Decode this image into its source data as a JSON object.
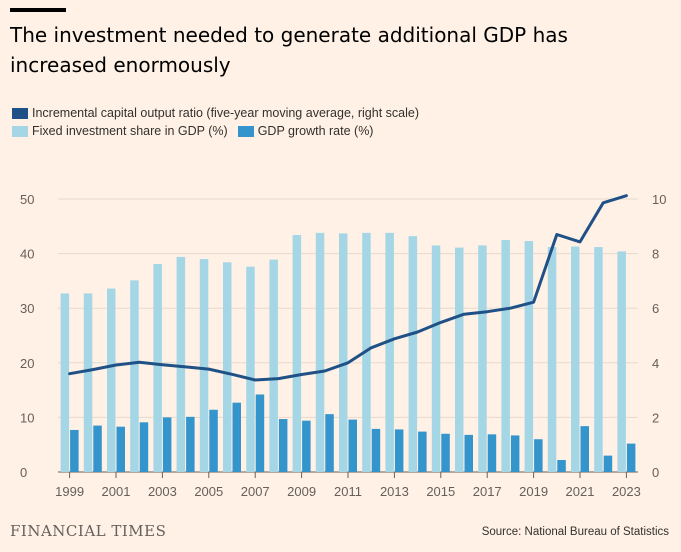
{
  "header": {
    "title": "The investment needed to generate additional GDP has increased enormously"
  },
  "legend": [
    {
      "label": "Incremental capital output ratio (five-year moving average, right scale)",
      "color": "#1F5186"
    },
    {
      "label": "Fixed investment share in GDP (%)",
      "color": "#A4D6E6"
    },
    {
      "label": "GDP growth rate (%)",
      "color": "#3495CD"
    }
  ],
  "footer": {
    "brand": "FINANCIAL TIMES",
    "source": "Source: National Bureau of Statistics"
  },
  "chart_data": {
    "type": "bar",
    "categories": [
      "1999",
      "2000",
      "2001",
      "2002",
      "2003",
      "2004",
      "2005",
      "2006",
      "2007",
      "2008",
      "2009",
      "2010",
      "2011",
      "2012",
      "2013",
      "2014",
      "2015",
      "2016",
      "2017",
      "2018",
      "2019",
      "2020",
      "2021",
      "2022",
      "2023"
    ],
    "x_tick_labels": [
      "1999",
      "2001",
      "2003",
      "2005",
      "2007",
      "2009",
      "2011",
      "2013",
      "2015",
      "2017",
      "2019",
      "2021",
      "2023"
    ],
    "series": [
      {
        "name": "Fixed investment share in GDP (%)",
        "type": "bar",
        "axis": "left",
        "color": "#A4D6E6",
        "values": [
          32.7,
          32.7,
          33.6,
          35.1,
          38.1,
          39.4,
          39.0,
          38.4,
          37.6,
          38.9,
          43.4,
          43.8,
          43.7,
          43.8,
          43.8,
          43.2,
          41.5,
          41.1,
          41.5,
          42.5,
          42.3,
          41.2,
          41.3,
          41.2,
          40.4
        ]
      },
      {
        "name": "GDP growth rate (%)",
        "type": "bar",
        "axis": "left",
        "color": "#3495CD",
        "values": [
          7.7,
          8.5,
          8.3,
          9.1,
          10.0,
          10.1,
          11.4,
          12.7,
          14.2,
          9.7,
          9.4,
          10.6,
          9.6,
          7.9,
          7.8,
          7.4,
          7.0,
          6.8,
          6.9,
          6.7,
          6.0,
          2.2,
          8.4,
          3.0,
          5.2
        ]
      },
      {
        "name": "Incremental capital output ratio (five-year moving average, right scale)",
        "type": "line",
        "axis": "right",
        "color": "#1F5186",
        "values": [
          3.6,
          3.75,
          3.92,
          4.02,
          3.93,
          3.85,
          3.77,
          3.58,
          3.37,
          3.42,
          3.57,
          3.7,
          4.0,
          4.55,
          4.88,
          5.13,
          5.48,
          5.78,
          5.87,
          6.0,
          6.22,
          8.7,
          8.43,
          9.86,
          10.12
        ]
      }
    ],
    "ylim": [
      0,
      50
    ],
    "y_ticks": [
      0,
      10,
      20,
      30,
      40,
      50
    ],
    "y2lim": [
      0,
      10
    ],
    "y2_ticks": [
      0,
      2,
      4,
      6,
      8,
      10
    ],
    "grid": true
  }
}
